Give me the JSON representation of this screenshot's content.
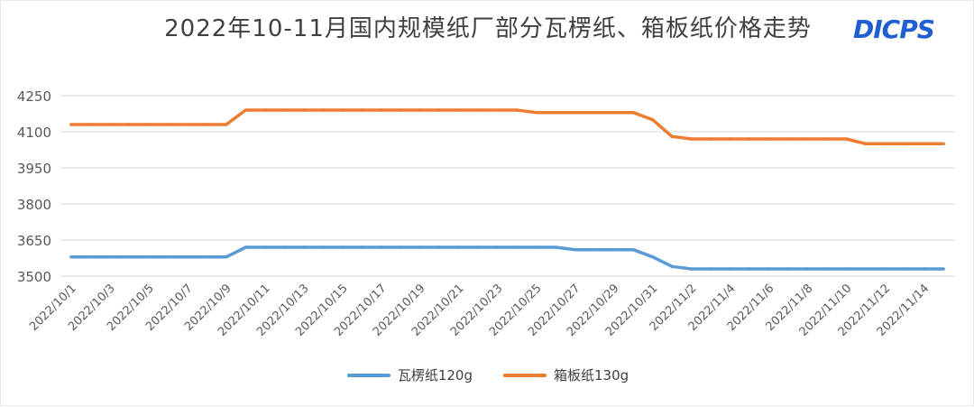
{
  "logo_text": "DICPS",
  "chart_data": {
    "type": "line",
    "title": "2022年10-11月国内规模纸厂部分瓦楞纸、箱板纸价格走势",
    "xlabel": "",
    "ylabel": "",
    "ylim": [
      3500,
      4250
    ],
    "yticks": [
      3500,
      3650,
      3800,
      3950,
      4100,
      4250
    ],
    "grid": true,
    "legend_position": "bottom",
    "x": [
      "2022/10/1",
      "2022/10/2",
      "2022/10/3",
      "2022/10/4",
      "2022/10/5",
      "2022/10/6",
      "2022/10/7",
      "2022/10/8",
      "2022/10/9",
      "2022/10/10",
      "2022/10/11",
      "2022/10/12",
      "2022/10/13",
      "2022/10/14",
      "2022/10/15",
      "2022/10/16",
      "2022/10/17",
      "2022/10/18",
      "2022/10/19",
      "2022/10/20",
      "2022/10/21",
      "2022/10/22",
      "2022/10/23",
      "2022/10/24",
      "2022/10/25",
      "2022/10/26",
      "2022/10/27",
      "2022/10/28",
      "2022/10/29",
      "2022/10/30",
      "2022/10/31",
      "2022/11/1",
      "2022/11/2",
      "2022/11/3",
      "2022/11/4",
      "2022/11/5",
      "2022/11/6",
      "2022/11/7",
      "2022/11/8",
      "2022/11/9",
      "2022/11/10",
      "2022/11/11",
      "2022/11/12",
      "2022/11/13",
      "2022/11/14",
      "2022/11/15"
    ],
    "xtick_labels": [
      "2022/10/1",
      "2022/10/3",
      "2022/10/5",
      "2022/10/7",
      "2022/10/9",
      "2022/10/11",
      "2022/10/13",
      "2022/10/15",
      "2022/10/17",
      "2022/10/19",
      "2022/10/21",
      "2022/10/23",
      "2022/10/25",
      "2022/10/27",
      "2022/10/29",
      "2022/10/31",
      "2022/11/2",
      "2022/11/4",
      "2022/11/6",
      "2022/11/8",
      "2022/11/10",
      "2022/11/12",
      "2022/11/14"
    ],
    "series": [
      {
        "name": "瓦楞纸120g",
        "color": "#5b9bd5",
        "values": [
          3580,
          3580,
          3580,
          3580,
          3580,
          3580,
          3580,
          3580,
          3580,
          3620,
          3620,
          3620,
          3620,
          3620,
          3620,
          3620,
          3620,
          3620,
          3620,
          3620,
          3620,
          3620,
          3620,
          3620,
          3620,
          3620,
          3610,
          3610,
          3610,
          3610,
          3580,
          3540,
          3530,
          3530,
          3530,
          3530,
          3530,
          3530,
          3530,
          3530,
          3530,
          3530,
          3530,
          3530,
          3530,
          3530
        ]
      },
      {
        "name": "箱板纸130g",
        "color": "#ed7d31",
        "values": [
          4130,
          4130,
          4130,
          4130,
          4130,
          4130,
          4130,
          4130,
          4130,
          4190,
          4190,
          4190,
          4190,
          4190,
          4190,
          4190,
          4190,
          4190,
          4190,
          4190,
          4190,
          4190,
          4190,
          4190,
          4180,
          4180,
          4180,
          4180,
          4180,
          4180,
          4150,
          4080,
          4070,
          4070,
          4070,
          4070,
          4070,
          4070,
          4070,
          4070,
          4070,
          4050,
          4050,
          4050,
          4050,
          4050
        ]
      }
    ]
  }
}
